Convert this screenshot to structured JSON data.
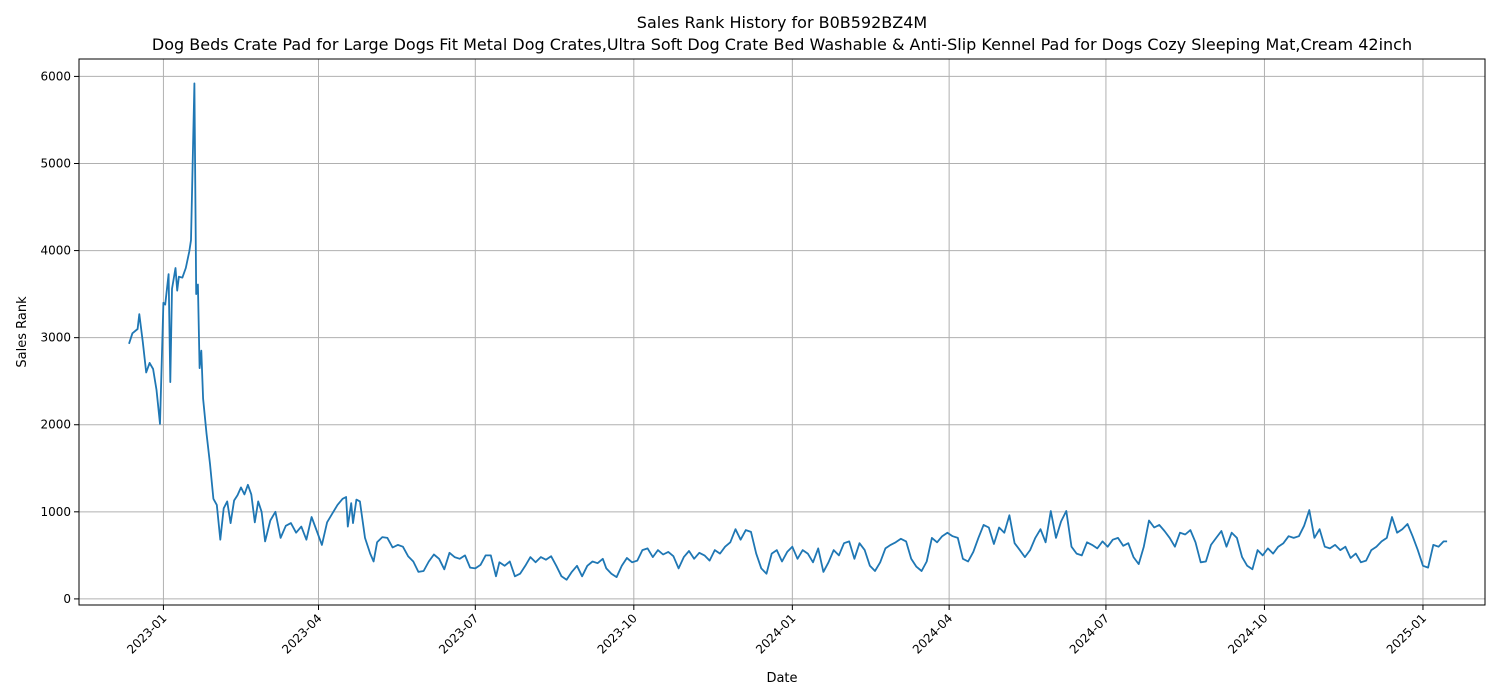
{
  "chart_data": {
    "type": "line",
    "title": "Sales Rank History for B0B592BZ4M",
    "subtitle": "Dog Beds Crate Pad for Large Dogs Fit Metal Dog Crates,Ultra Soft Dog Crate Bed Washable & Anti-Slip Kennel Pad for Dogs Cozy Sleeping Mat,Cream 42inch",
    "xlabel": "Date",
    "ylabel": "Sales Rank",
    "x_ticks": [
      "2023-01",
      "2023-04",
      "2023-07",
      "2023-10",
      "2024-01",
      "2024-04",
      "2024-07",
      "2024-10",
      "2025-01"
    ],
    "y_ticks": [
      0,
      1000,
      2000,
      3000,
      4000,
      5000,
      6000
    ],
    "xlim": [
      "2022-11-13",
      "2025-02-06"
    ],
    "ylim": [
      -70,
      6200
    ],
    "grid": true,
    "line_color": "#1f77b4",
    "series": [
      {
        "points": [
          [
            "2022-12-12",
            2930
          ],
          [
            "2022-12-14",
            3050
          ],
          [
            "2022-12-17",
            3100
          ],
          [
            "2022-12-18",
            3270
          ],
          [
            "2022-12-20",
            2950
          ],
          [
            "2022-12-22",
            2600
          ],
          [
            "2022-12-24",
            2710
          ],
          [
            "2022-12-26",
            2640
          ],
          [
            "2022-12-28",
            2400
          ],
          [
            "2022-12-30",
            2010
          ],
          [
            "2023-01-01",
            3400
          ],
          [
            "2023-01-02",
            3380
          ],
          [
            "2023-01-04",
            3730
          ],
          [
            "2023-01-05",
            2490
          ],
          [
            "2023-01-06",
            3560
          ],
          [
            "2023-01-08",
            3800
          ],
          [
            "2023-01-09",
            3540
          ],
          [
            "2023-01-10",
            3700
          ],
          [
            "2023-01-12",
            3690
          ],
          [
            "2023-01-14",
            3800
          ],
          [
            "2023-01-16",
            3990
          ],
          [
            "2023-01-17",
            4120
          ],
          [
            "2023-01-19",
            5920
          ],
          [
            "2023-01-20",
            3500
          ],
          [
            "2023-01-21",
            3610
          ],
          [
            "2023-01-22",
            2650
          ],
          [
            "2023-01-23",
            2850
          ],
          [
            "2023-01-24",
            2300
          ],
          [
            "2023-01-26",
            1900
          ],
          [
            "2023-01-28",
            1550
          ],
          [
            "2023-01-30",
            1150
          ],
          [
            "2023-02-01",
            1080
          ],
          [
            "2023-02-03",
            680
          ],
          [
            "2023-02-05",
            1040
          ],
          [
            "2023-02-07",
            1120
          ],
          [
            "2023-02-09",
            870
          ],
          [
            "2023-02-11",
            1130
          ],
          [
            "2023-02-13",
            1190
          ],
          [
            "2023-02-15",
            1280
          ],
          [
            "2023-02-17",
            1200
          ],
          [
            "2023-02-19",
            1310
          ],
          [
            "2023-02-21",
            1200
          ],
          [
            "2023-02-23",
            880
          ],
          [
            "2023-02-25",
            1120
          ],
          [
            "2023-02-27",
            1000
          ],
          [
            "2023-03-01",
            660
          ],
          [
            "2023-03-04",
            900
          ],
          [
            "2023-03-07",
            1000
          ],
          [
            "2023-03-10",
            700
          ],
          [
            "2023-03-13",
            840
          ],
          [
            "2023-03-16",
            870
          ],
          [
            "2023-03-19",
            760
          ],
          [
            "2023-03-22",
            830
          ],
          [
            "2023-03-25",
            680
          ],
          [
            "2023-03-28",
            940
          ],
          [
            "2023-03-31",
            780
          ],
          [
            "2023-04-03",
            620
          ],
          [
            "2023-04-06",
            880
          ],
          [
            "2023-04-09",
            980
          ],
          [
            "2023-04-12",
            1080
          ],
          [
            "2023-04-15",
            1150
          ],
          [
            "2023-04-17",
            1170
          ],
          [
            "2023-04-18",
            830
          ],
          [
            "2023-04-20",
            1100
          ],
          [
            "2023-04-21",
            870
          ],
          [
            "2023-04-23",
            1140
          ],
          [
            "2023-04-25",
            1120
          ],
          [
            "2023-04-28",
            700
          ],
          [
            "2023-05-01",
            520
          ],
          [
            "2023-05-03",
            430
          ],
          [
            "2023-05-05",
            650
          ],
          [
            "2023-05-08",
            710
          ],
          [
            "2023-05-11",
            700
          ],
          [
            "2023-05-14",
            590
          ],
          [
            "2023-05-17",
            620
          ],
          [
            "2023-05-20",
            600
          ],
          [
            "2023-05-23",
            490
          ],
          [
            "2023-05-26",
            430
          ],
          [
            "2023-05-29",
            310
          ],
          [
            "2023-06-01",
            320
          ],
          [
            "2023-06-04",
            430
          ],
          [
            "2023-06-07",
            510
          ],
          [
            "2023-06-10",
            460
          ],
          [
            "2023-06-13",
            340
          ],
          [
            "2023-06-16",
            530
          ],
          [
            "2023-06-19",
            480
          ],
          [
            "2023-06-22",
            460
          ],
          [
            "2023-06-25",
            500
          ],
          [
            "2023-06-28",
            360
          ],
          [
            "2023-07-01",
            350
          ],
          [
            "2023-07-04",
            390
          ],
          [
            "2023-07-07",
            500
          ],
          [
            "2023-07-10",
            500
          ],
          [
            "2023-07-13",
            260
          ],
          [
            "2023-07-15",
            420
          ],
          [
            "2023-07-18",
            380
          ],
          [
            "2023-07-21",
            430
          ],
          [
            "2023-07-24",
            260
          ],
          [
            "2023-07-27",
            290
          ],
          [
            "2023-07-30",
            380
          ],
          [
            "2023-08-02",
            480
          ],
          [
            "2023-08-05",
            420
          ],
          [
            "2023-08-08",
            480
          ],
          [
            "2023-08-11",
            450
          ],
          [
            "2023-08-14",
            490
          ],
          [
            "2023-08-17",
            380
          ],
          [
            "2023-08-20",
            260
          ],
          [
            "2023-08-23",
            220
          ],
          [
            "2023-08-26",
            310
          ],
          [
            "2023-08-29",
            380
          ],
          [
            "2023-09-01",
            260
          ],
          [
            "2023-09-04",
            380
          ],
          [
            "2023-09-07",
            430
          ],
          [
            "2023-09-10",
            410
          ],
          [
            "2023-09-13",
            460
          ],
          [
            "2023-09-15",
            350
          ],
          [
            "2023-09-18",
            290
          ],
          [
            "2023-09-21",
            250
          ],
          [
            "2023-09-24",
            380
          ],
          [
            "2023-09-27",
            470
          ],
          [
            "2023-09-30",
            420
          ],
          [
            "2023-10-03",
            440
          ],
          [
            "2023-10-06",
            560
          ],
          [
            "2023-10-09",
            580
          ],
          [
            "2023-10-12",
            480
          ],
          [
            "2023-10-15",
            560
          ],
          [
            "2023-10-18",
            510
          ],
          [
            "2023-10-21",
            540
          ],
          [
            "2023-10-24",
            490
          ],
          [
            "2023-10-27",
            350
          ],
          [
            "2023-10-30",
            480
          ],
          [
            "2023-11-02",
            550
          ],
          [
            "2023-11-05",
            460
          ],
          [
            "2023-11-08",
            530
          ],
          [
            "2023-11-11",
            500
          ],
          [
            "2023-11-14",
            440
          ],
          [
            "2023-11-17",
            560
          ],
          [
            "2023-11-20",
            520
          ],
          [
            "2023-11-23",
            600
          ],
          [
            "2023-11-26",
            650
          ],
          [
            "2023-11-29",
            800
          ],
          [
            "2023-12-02",
            680
          ],
          [
            "2023-12-05",
            790
          ],
          [
            "2023-12-08",
            770
          ],
          [
            "2023-12-11",
            520
          ],
          [
            "2023-12-14",
            350
          ],
          [
            "2023-12-17",
            290
          ],
          [
            "2023-12-20",
            520
          ],
          [
            "2023-12-23",
            560
          ],
          [
            "2023-12-26",
            430
          ],
          [
            "2023-12-29",
            540
          ],
          [
            "2024-01-01",
            600
          ],
          [
            "2024-01-04",
            460
          ],
          [
            "2024-01-07",
            560
          ],
          [
            "2024-01-10",
            520
          ],
          [
            "2024-01-13",
            420
          ],
          [
            "2024-01-16",
            580
          ],
          [
            "2024-01-19",
            310
          ],
          [
            "2024-01-22",
            420
          ],
          [
            "2024-01-25",
            560
          ],
          [
            "2024-01-28",
            500
          ],
          [
            "2024-01-31",
            640
          ],
          [
            "2024-02-03",
            660
          ],
          [
            "2024-02-06",
            460
          ],
          [
            "2024-02-09",
            640
          ],
          [
            "2024-02-12",
            560
          ],
          [
            "2024-02-15",
            380
          ],
          [
            "2024-02-18",
            320
          ],
          [
            "2024-02-21",
            420
          ],
          [
            "2024-02-24",
            580
          ],
          [
            "2024-02-27",
            620
          ],
          [
            "2024-03-01",
            650
          ],
          [
            "2024-03-04",
            690
          ],
          [
            "2024-03-07",
            660
          ],
          [
            "2024-03-10",
            460
          ],
          [
            "2024-03-13",
            370
          ],
          [
            "2024-03-16",
            320
          ],
          [
            "2024-03-19",
            430
          ],
          [
            "2024-03-22",
            700
          ],
          [
            "2024-03-25",
            650
          ],
          [
            "2024-03-28",
            720
          ],
          [
            "2024-03-31",
            760
          ],
          [
            "2024-04-03",
            720
          ],
          [
            "2024-04-06",
            700
          ],
          [
            "2024-04-09",
            460
          ],
          [
            "2024-04-12",
            430
          ],
          [
            "2024-04-15",
            540
          ],
          [
            "2024-04-18",
            700
          ],
          [
            "2024-04-21",
            850
          ],
          [
            "2024-04-24",
            820
          ],
          [
            "2024-04-27",
            630
          ],
          [
            "2024-04-30",
            820
          ],
          [
            "2024-05-03",
            760
          ],
          [
            "2024-05-06",
            960
          ],
          [
            "2024-05-09",
            640
          ],
          [
            "2024-05-12",
            560
          ],
          [
            "2024-05-15",
            480
          ],
          [
            "2024-05-18",
            560
          ],
          [
            "2024-05-21",
            700
          ],
          [
            "2024-05-24",
            800
          ],
          [
            "2024-05-27",
            650
          ],
          [
            "2024-05-30",
            1010
          ],
          [
            "2024-06-02",
            700
          ],
          [
            "2024-06-05",
            890
          ],
          [
            "2024-06-08",
            1010
          ],
          [
            "2024-06-11",
            600
          ],
          [
            "2024-06-14",
            520
          ],
          [
            "2024-06-17",
            500
          ],
          [
            "2024-06-20",
            650
          ],
          [
            "2024-06-23",
            620
          ],
          [
            "2024-06-26",
            580
          ],
          [
            "2024-06-29",
            660
          ],
          [
            "2024-07-02",
            600
          ],
          [
            "2024-07-05",
            680
          ],
          [
            "2024-07-08",
            700
          ],
          [
            "2024-07-11",
            610
          ],
          [
            "2024-07-14",
            640
          ],
          [
            "2024-07-17",
            480
          ],
          [
            "2024-07-20",
            400
          ],
          [
            "2024-07-23",
            600
          ],
          [
            "2024-07-26",
            900
          ],
          [
            "2024-07-29",
            820
          ],
          [
            "2024-08-01",
            850
          ],
          [
            "2024-08-04",
            780
          ],
          [
            "2024-08-07",
            700
          ],
          [
            "2024-08-10",
            600
          ],
          [
            "2024-08-13",
            760
          ],
          [
            "2024-08-16",
            740
          ],
          [
            "2024-08-19",
            790
          ],
          [
            "2024-08-22",
            650
          ],
          [
            "2024-08-25",
            420
          ],
          [
            "2024-08-28",
            430
          ],
          [
            "2024-08-31",
            620
          ],
          [
            "2024-09-03",
            700
          ],
          [
            "2024-09-06",
            780
          ],
          [
            "2024-09-09",
            600
          ],
          [
            "2024-09-12",
            760
          ],
          [
            "2024-09-15",
            700
          ],
          [
            "2024-09-18",
            480
          ],
          [
            "2024-09-21",
            380
          ],
          [
            "2024-09-24",
            340
          ],
          [
            "2024-09-27",
            560
          ],
          [
            "2024-09-30",
            500
          ],
          [
            "2024-10-03",
            580
          ],
          [
            "2024-10-06",
            520
          ],
          [
            "2024-10-09",
            600
          ],
          [
            "2024-10-12",
            640
          ],
          [
            "2024-10-15",
            720
          ],
          [
            "2024-10-18",
            700
          ],
          [
            "2024-10-21",
            720
          ],
          [
            "2024-10-24",
            840
          ],
          [
            "2024-10-27",
            1020
          ],
          [
            "2024-10-30",
            700
          ],
          [
            "2024-11-02",
            800
          ],
          [
            "2024-11-05",
            600
          ],
          [
            "2024-11-08",
            580
          ],
          [
            "2024-11-11",
            620
          ],
          [
            "2024-11-14",
            560
          ],
          [
            "2024-11-17",
            600
          ],
          [
            "2024-11-20",
            470
          ],
          [
            "2024-11-23",
            520
          ],
          [
            "2024-11-26",
            420
          ],
          [
            "2024-11-29",
            440
          ],
          [
            "2024-12-02",
            560
          ],
          [
            "2024-12-05",
            600
          ],
          [
            "2024-12-08",
            660
          ],
          [
            "2024-12-11",
            700
          ],
          [
            "2024-12-14",
            940
          ],
          [
            "2024-12-17",
            760
          ],
          [
            "2024-12-20",
            800
          ],
          [
            "2024-12-23",
            860
          ],
          [
            "2024-12-26",
            720
          ],
          [
            "2024-12-29",
            560
          ],
          [
            "2025-01-01",
            380
          ],
          [
            "2025-01-04",
            360
          ],
          [
            "2025-01-07",
            620
          ],
          [
            "2025-01-10",
            600
          ],
          [
            "2025-01-13",
            660
          ],
          [
            "2025-01-15",
            660
          ]
        ]
      }
    ]
  }
}
